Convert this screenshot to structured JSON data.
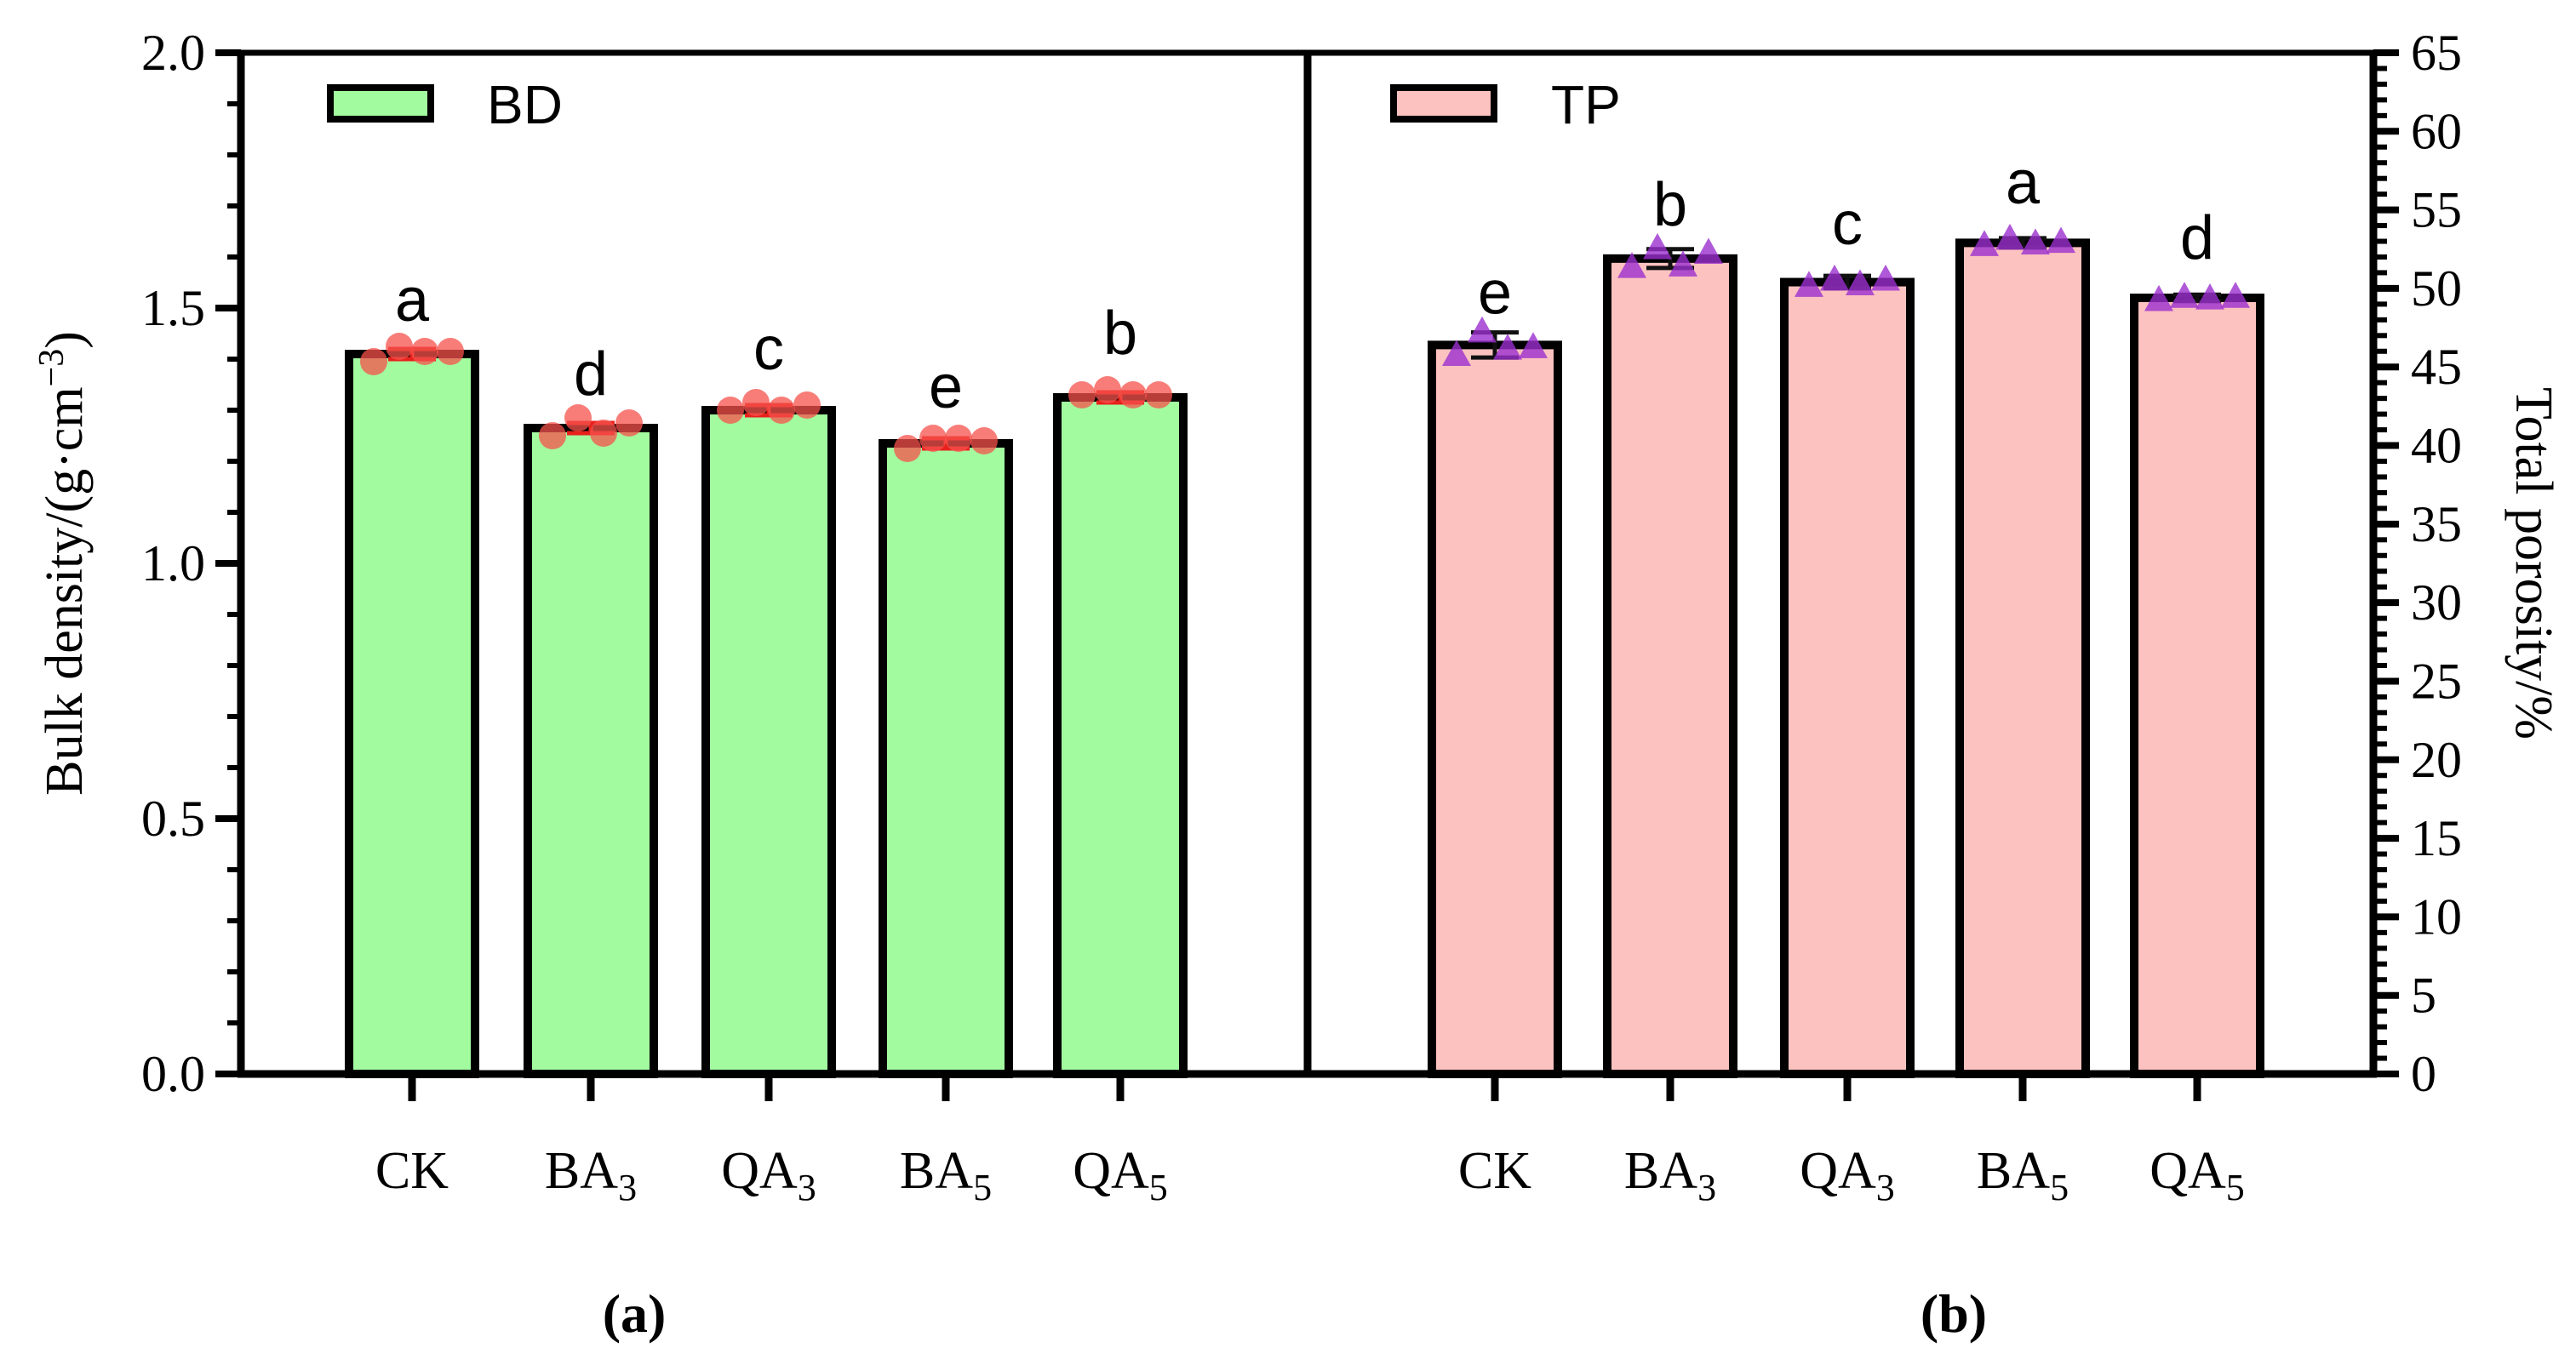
{
  "chart_data": [
    {
      "panel_label": "a",
      "type": "bar",
      "title": "",
      "categories": [
        {
          "base": "CK",
          "sub": ""
        },
        {
          "base": "BA",
          "sub": "3"
        },
        {
          "base": "QA",
          "sub": "3"
        },
        {
          "base": "BA",
          "sub": "5"
        },
        {
          "base": "QA",
          "sub": "5"
        }
      ],
      "values": [
        1.41,
        1.265,
        1.3,
        1.235,
        1.325
      ],
      "errors": [
        0.01,
        0.01,
        0.01,
        0.01,
        0.01
      ],
      "letters": [
        "a",
        "d",
        "c",
        "e",
        "b"
      ],
      "points": [
        [
          1.395,
          1.425,
          1.415,
          1.415
        ],
        [
          1.25,
          1.285,
          1.255,
          1.275
        ],
        [
          1.3,
          1.315,
          1.3,
          1.31
        ],
        [
          1.225,
          1.245,
          1.245,
          1.24
        ],
        [
          1.33,
          1.34,
          1.33,
          1.33
        ]
      ],
      "series_name": "BD",
      "ylabel_base": "Bulk density/(g·cm",
      "ylabel_sup": "−3",
      "ylabel_end": ")",
      "ylim": [
        0,
        2.0
      ],
      "yticks": [
        "0.0",
        "0.5",
        "1.0",
        "1.5",
        "2.0"
      ],
      "bar_color": "#a3fb9f",
      "point_color": "#f5524c",
      "err_color": "#e8211c",
      "legend_position": "top-left"
    },
    {
      "panel_label": "b",
      "type": "bar",
      "title": "",
      "categories": [
        {
          "base": "CK",
          "sub": ""
        },
        {
          "base": "BA",
          "sub": "3"
        },
        {
          "base": "QA",
          "sub": "3"
        },
        {
          "base": "BA",
          "sub": "5"
        },
        {
          "base": "QA",
          "sub": "5"
        }
      ],
      "values": [
        46.4,
        51.9,
        50.4,
        52.9,
        49.4
      ],
      "errors": [
        0.8,
        0.6,
        0.4,
        0.3,
        0.2
      ],
      "letters": [
        "e",
        "b",
        "c",
        "a",
        "d"
      ],
      "points": [
        [
          45.8,
          47.3,
          46.2,
          46.3
        ],
        [
          51.4,
          52.6,
          51.5,
          52.3
        ],
        [
          50.2,
          50.6,
          50.3,
          50.6
        ],
        [
          52.8,
          53.2,
          52.9,
          53.0
        ],
        [
          49.3,
          49.5,
          49.4,
          49.5
        ]
      ],
      "series_name": "TP",
      "ylabel": "Total porosity/%",
      "ylim": [
        0,
        65
      ],
      "yticks": [
        "0",
        "5",
        "10",
        "15",
        "20",
        "25",
        "30",
        "35",
        "40",
        "45",
        "50",
        "55",
        "60",
        "65"
      ],
      "bar_color": "#fcc2bf",
      "point_color": "#9b2fcf",
      "err_color": "#111111",
      "legend_position": "top-left"
    }
  ]
}
